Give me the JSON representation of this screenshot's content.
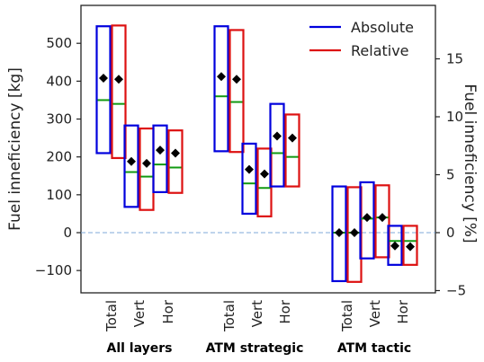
{
  "chart_data": {
    "type": "box",
    "ylabel_left": "Fuel inneficiency [kg]",
    "ylabel_right": "Fuel inneficiency [%]",
    "ylim_left": [
      -160,
      560
    ],
    "ylim_right": [
      -5,
      17
    ],
    "yticks_left": [
      -100,
      0,
      100,
      200,
      300,
      400,
      500
    ],
    "yticks_right": [
      -5,
      0,
      5,
      10,
      15
    ],
    "zero_line": true,
    "legend": {
      "placement": "top-right",
      "entries": [
        {
          "name": "Absolute",
          "color": "#0000dd"
        },
        {
          "name": "Relative",
          "color": "#dd1111"
        }
      ]
    },
    "median_color": "#119911",
    "mean_marker_color": "#000000",
    "groups": [
      {
        "label": "All layers",
        "categories": [
          {
            "label": "Total",
            "absolute": {
              "low": 210,
              "high": 545,
              "median": 350,
              "mean": 408
            },
            "relative": {
              "low": 197,
              "high": 547,
              "median": 340,
              "mean": 405
            }
          },
          {
            "label": "Vert",
            "absolute": {
              "low": 68,
              "high": 283,
              "median": 160,
              "mean": 188
            },
            "relative": {
              "low": 60,
              "high": 275,
              "median": 148,
              "mean": 183
            }
          },
          {
            "label": "Hor",
            "absolute": {
              "low": 107,
              "high": 283,
              "median": 180,
              "mean": 218
            },
            "relative": {
              "low": 105,
              "high": 270,
              "median": 172,
              "mean": 210
            }
          }
        ]
      },
      {
        "label": "ATM strategic",
        "categories": [
          {
            "label": "Total",
            "absolute": {
              "low": 215,
              "high": 545,
              "median": 360,
              "mean": 412
            },
            "relative": {
              "low": 213,
              "high": 535,
              "median": 345,
              "mean": 405
            }
          },
          {
            "label": "Vert",
            "absolute": {
              "low": 50,
              "high": 235,
              "median": 130,
              "mean": 167
            },
            "relative": {
              "low": 43,
              "high": 222,
              "median": 118,
              "mean": 155
            }
          },
          {
            "label": "Hor",
            "absolute": {
              "low": 122,
              "high": 340,
              "median": 210,
              "mean": 255
            },
            "relative": {
              "low": 122,
              "high": 312,
              "median": 200,
              "mean": 250
            }
          }
        ]
      },
      {
        "label": "ATM tactic",
        "categories": [
          {
            "label": "Total",
            "absolute": {
              "low": -128,
              "high": 122,
              "median": 0,
              "mean": 0
            },
            "relative": {
              "low": -130,
              "high": 120,
              "median": 0,
              "mean": 0
            }
          },
          {
            "label": "Vert",
            "absolute": {
              "low": -68,
              "high": 133,
              "median": 37,
              "mean": 40
            },
            "relative": {
              "low": -65,
              "high": 125,
              "median": 40,
              "mean": 40
            }
          },
          {
            "label": "Hor",
            "absolute": {
              "low": -85,
              "high": 18,
              "median": -22,
              "mean": -35
            },
            "relative": {
              "low": -85,
              "high": 18,
              "median": -22,
              "mean": -37
            }
          }
        ]
      }
    ]
  }
}
